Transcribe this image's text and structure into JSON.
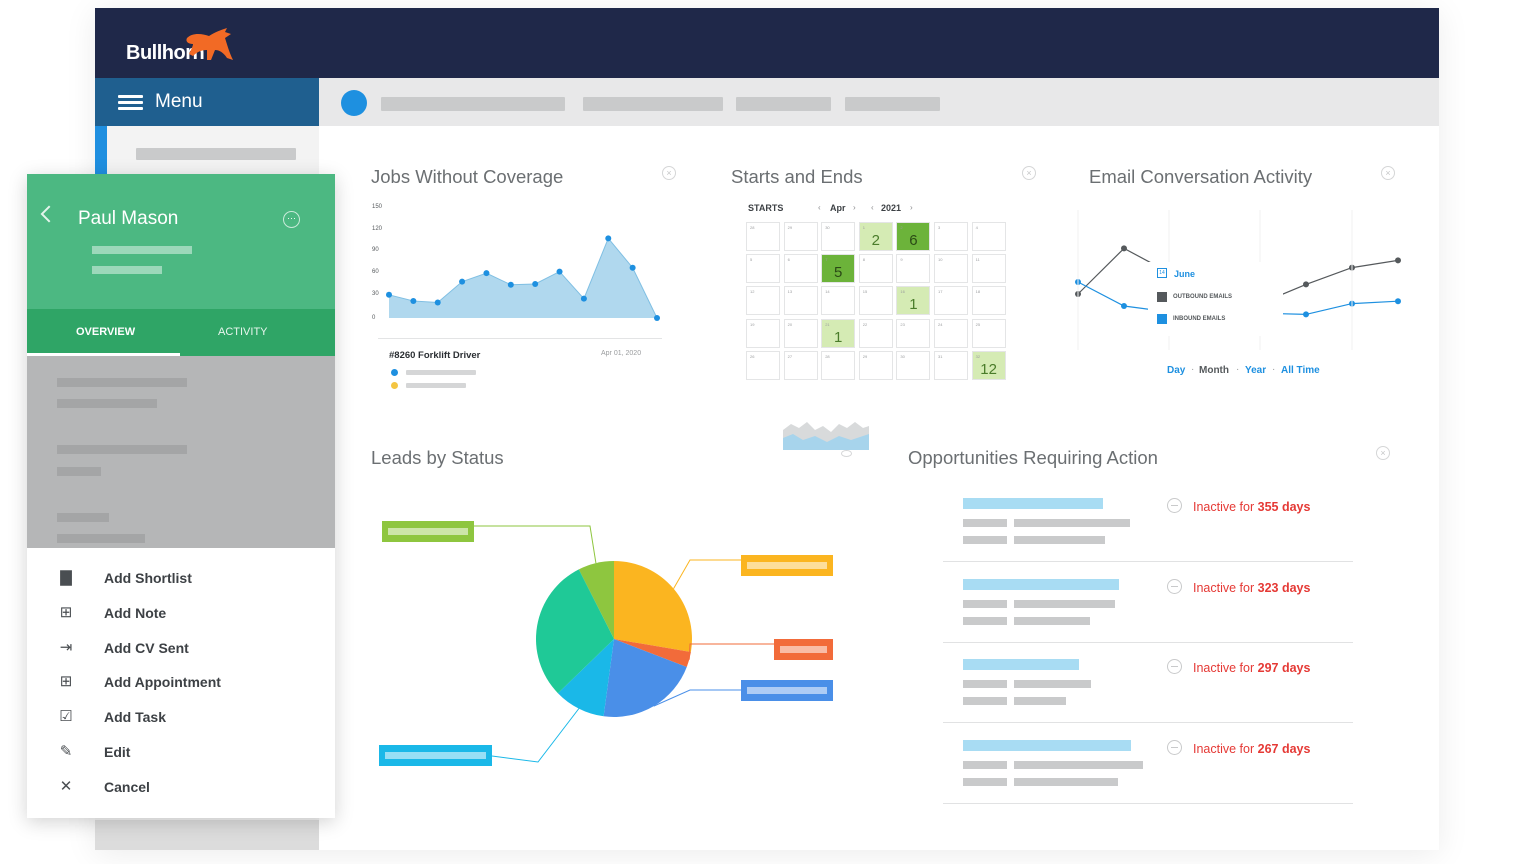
{
  "app": {
    "logo_text": "Bullhorn",
    "menu_label": "Menu"
  },
  "panel": {
    "name": "Paul Mason",
    "tabs": [
      "OVERVIEW",
      "ACTIVITY"
    ],
    "actions": [
      {
        "label": "Add Shortlist",
        "icon": "briefcase-icon"
      },
      {
        "label": "Add Note",
        "icon": "note-plus-icon"
      },
      {
        "label": "Add CV Sent",
        "icon": "sent-arrow-icon"
      },
      {
        "label": "Add Appointment",
        "icon": "calendar-plus-icon"
      },
      {
        "label": "Add Task",
        "icon": "checkbox-icon"
      },
      {
        "label": "Edit",
        "icon": "pencil-icon"
      },
      {
        "label": "Cancel",
        "icon": "close-icon"
      }
    ]
  },
  "widgets": {
    "jobs": {
      "title": "Jobs Without Coverage",
      "job_title": "#8260 Forklift Driver",
      "job_date": "Apr 01, 2020"
    },
    "starts": {
      "title": "Starts and Ends",
      "starts_label": "STARTS",
      "month": "Apr",
      "year": "2021",
      "highlights": [
        "2",
        "6",
        "5",
        "1",
        "1",
        "12"
      ]
    },
    "email": {
      "title": "Email Conversation Activity",
      "legend_month": "June",
      "legend_outbound": "OUTBOUND EMAILS",
      "legend_inbound": "INBOUND EMAILS",
      "ranges": [
        "Day",
        "Month",
        "Year",
        "All Time"
      ],
      "colors": {
        "outbound": "#55595c",
        "inbound": "#1e90e0"
      }
    },
    "leads": {
      "title": "Leads by Status"
    },
    "opps": {
      "title": "Opportunities Requiring Action",
      "items": [
        {
          "prefix": "Inactive for",
          "days": "355 days"
        },
        {
          "prefix": "Inactive for",
          "days": "323 days"
        },
        {
          "prefix": "Inactive for",
          "days": "297 days"
        },
        {
          "prefix": "Inactive for",
          "days": "267 days"
        }
      ]
    }
  },
  "chart_data": [
    {
      "type": "area",
      "yticks": [
        "150",
        "120",
        "90",
        "60",
        "30",
        "0"
      ],
      "ylim": [
        0,
        150
      ],
      "values": [
        30,
        22,
        20,
        47,
        58,
        43,
        44,
        60,
        25,
        103,
        65,
        0
      ],
      "color": "#a7d4ec",
      "point_color": "#1e90e0"
    },
    {
      "type": "line",
      "series": [
        {
          "values": [
            0.3,
            0.68,
            0.48,
            0.45,
            0.22,
            0.38,
            0.52,
            0.58
          ]
        },
        {
          "values": [
            0.4,
            0.2,
            0.15,
            0.1,
            0.14,
            0.13,
            0.22,
            0.24
          ]
        }
      ]
    },
    {
      "type": "pie",
      "values": [
        7,
        26,
        3,
        20,
        10,
        28
      ],
      "colors": [
        "#8ec63f",
        "#fbb520",
        "#f26b3a",
        "#4a8fe8",
        "#1ab8e8",
        "#1fc997"
      ]
    }
  ]
}
